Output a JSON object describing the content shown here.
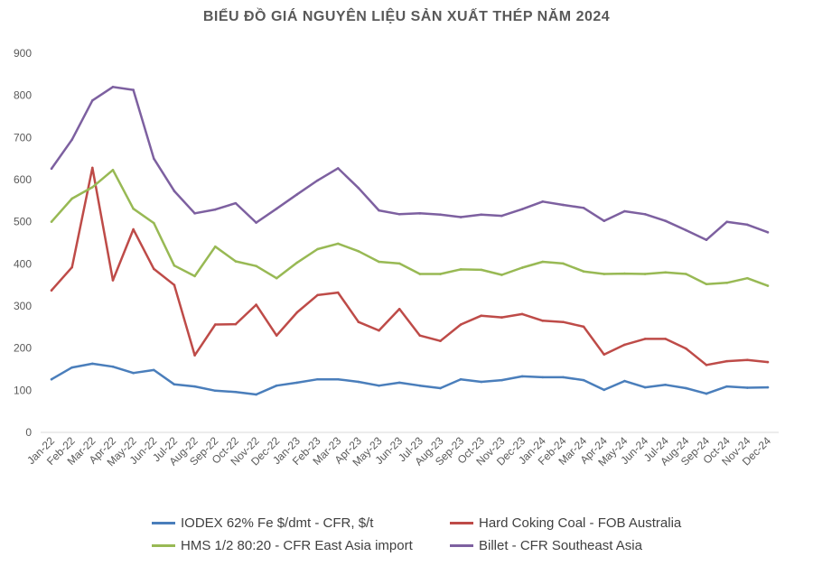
{
  "chart_data": {
    "type": "line",
    "title": "BIỂU ĐỒ GIÁ NGUYÊN LIỆU SẢN XUẤT THÉP NĂM 2024",
    "xlabel": "",
    "ylabel": "",
    "ylim": [
      0,
      900
    ],
    "yticks": [
      0,
      100,
      200,
      300,
      400,
      500,
      600,
      700,
      800,
      900
    ],
    "grid": false,
    "legend_placement": "bottom",
    "categories": [
      "Jan-22",
      "Feb-22",
      "Mar-22",
      "Apr-22",
      "May-22",
      "Jun-22",
      "Jul-22",
      "Aug-22",
      "Sep-22",
      "Oct-22",
      "Nov-22",
      "Dec-22",
      "Jan-23",
      "Feb-23",
      "Mar-23",
      "Apr-23",
      "May-23",
      "Jun-23",
      "Jul-23",
      "Aug-23",
      "Sep-23",
      "Oct-23",
      "Nov-23",
      "Dec-23",
      "Jan-24",
      "Feb-24",
      "Mar-24",
      "Apr-24",
      "May-24",
      "Jun-24",
      "Jul-24",
      "Aug-24",
      "Sep-24",
      "Oct-24",
      "Nov-24",
      "Dec-24"
    ],
    "series": [
      {
        "name": "IODEX 62% Fe $/dmt - CFR, $/t",
        "color": "#4a7ebb",
        "values": [
          126,
          154,
          163,
          156,
          141,
          148,
          114,
          109,
          99,
          96,
          90,
          111,
          118,
          126,
          126,
          120,
          111,
          118,
          111,
          105,
          126,
          120,
          124,
          133,
          131,
          131,
          124,
          101,
          122,
          107,
          113,
          105,
          92,
          109,
          106,
          107
        ]
      },
      {
        "name": "Hard Coking Coal - FOB Australia",
        "color": "#be4b48",
        "values": [
          337,
          392,
          628,
          361,
          482,
          388,
          350,
          183,
          256,
          257,
          303,
          230,
          285,
          326,
          332,
          262,
          242,
          293,
          230,
          217,
          256,
          277,
          273,
          281,
          265,
          262,
          251,
          185,
          208,
          222,
          222,
          199,
          160,
          169,
          172,
          167
        ]
      },
      {
        "name": "HMS 1/2 80:20 - CFR East Asia import",
        "color": "#98b954",
        "values": [
          500,
          555,
          582,
          623,
          531,
          497,
          396,
          371,
          441,
          406,
          395,
          366,
          403,
          435,
          448,
          430,
          405,
          401,
          376,
          376,
          387,
          386,
          374,
          391,
          405,
          401,
          382,
          376,
          377,
          376,
          380,
          376,
          352,
          355,
          366,
          348
        ]
      },
      {
        "name": "Billet - CFR Southeast Asia",
        "color": "#7d60a0",
        "values": [
          626,
          695,
          788,
          820,
          813,
          650,
          573,
          520,
          529,
          544,
          498,
          531,
          565,
          598,
          627,
          580,
          527,
          518,
          520,
          517,
          511,
          517,
          514,
          530,
          548,
          540,
          533,
          502,
          525,
          518,
          502,
          480,
          457,
          500,
          493,
          475
        ]
      }
    ]
  }
}
